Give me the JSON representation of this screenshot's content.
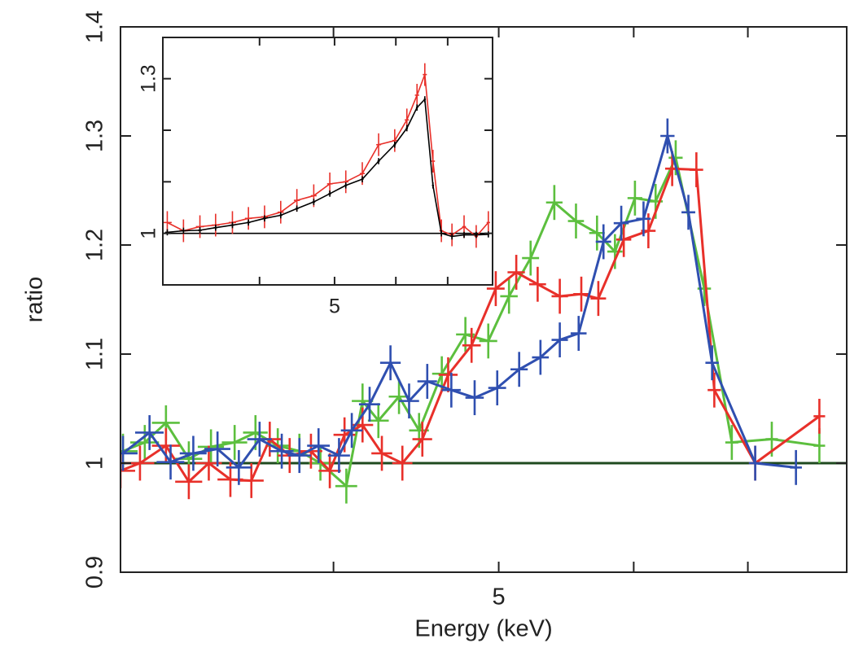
{
  "chart_data": [
    {
      "type": "line",
      "xlabel": "Energy (keV)",
      "ylabel": "ratio",
      "xlog": true,
      "xlim": [
        3,
        8
      ],
      "xticks": [
        5
      ],
      "xminorticks": [
        4,
        6,
        7
      ],
      "ylim": [
        0.9,
        1.4
      ],
      "yticks": [
        0.9,
        1,
        1.1,
        1.2,
        1.3,
        1.4
      ],
      "hline": 1,
      "hline_color": "#1f4a1f",
      "series": [
        {
          "color": "#5cbf3e",
          "xerr": 0.06,
          "yerr": 0.016,
          "x": [
            3.01,
            3.1,
            3.19,
            3.29,
            3.39,
            3.5,
            3.6,
            3.71,
            3.82,
            3.93,
            4.07,
            4.16,
            4.25,
            4.37,
            4.49,
            4.63,
            4.78,
            4.93,
            5.07,
            5.22,
            5.39,
            5.55,
            5.71,
            5.85,
            6.01,
            6.18,
            6.35,
            6.6,
            6.85,
            7.23,
            7.71
          ],
          "values": [
            1.011,
            1.019,
            1.037,
            1.004,
            1.015,
            1.019,
            1.028,
            1.016,
            1.011,
            1.0,
            0.979,
            1.057,
            1.039,
            1.061,
            1.03,
            1.082,
            1.118,
            1.112,
            1.153,
            1.188,
            1.239,
            1.222,
            1.211,
            1.194,
            1.243,
            1.24,
            1.28,
            1.16,
            1.019,
            1.022,
            1.016
          ]
        },
        {
          "color": "#e8302a",
          "xerr": 0.06,
          "yerr": 0.016,
          "x": [
            3.0,
            3.08,
            3.19,
            3.29,
            3.38,
            3.48,
            3.58,
            3.67,
            3.77,
            3.88,
            3.98,
            4.06,
            4.16,
            4.27,
            4.39,
            4.51,
            4.67,
            4.82,
            4.98,
            5.12,
            5.27,
            5.43,
            5.59,
            5.72,
            5.92,
            6.12,
            6.32,
            6.53,
            6.69,
            7.07,
            7.71
          ],
          "values": [
            0.993,
            1.0,
            1.016,
            0.983,
            1.0,
            0.985,
            0.984,
            1.022,
            1.007,
            1.011,
            0.993,
            1.026,
            1.035,
            1.009,
            1.0,
            1.022,
            1.081,
            1.108,
            1.16,
            1.175,
            1.164,
            1.153,
            1.155,
            1.151,
            1.205,
            1.213,
            1.27,
            1.269,
            1.067,
            1.0,
            1.043
          ]
        },
        {
          "color": "#2f4fb0",
          "xerr": 0.06,
          "yerr": 0.016,
          "x": [
            3.01,
            3.12,
            3.21,
            3.31,
            3.42,
            3.52,
            3.62,
            3.73,
            3.82,
            3.92,
            4.03,
            4.1,
            4.2,
            4.32,
            4.43,
            4.54,
            4.69,
            4.84,
            4.99,
            5.14,
            5.29,
            5.43,
            5.57,
            5.76,
            5.9,
            6.08,
            6.28,
            6.46,
            6.67,
            7.07,
            7.47
          ],
          "values": [
            1.009,
            1.028,
            1.001,
            1.009,
            1.013,
            0.996,
            1.022,
            1.011,
            1.007,
            1.016,
            1.007,
            1.03,
            1.054,
            1.092,
            1.057,
            1.075,
            1.067,
            1.06,
            1.069,
            1.086,
            1.097,
            1.113,
            1.119,
            1.203,
            1.22,
            1.224,
            1.3,
            1.23,
            1.092,
            1.0,
            0.996
          ]
        }
      ]
    },
    {
      "type": "line",
      "xlog": true,
      "xlim": [
        3,
        8
      ],
      "xticks": [
        5
      ],
      "xminorticks": [
        4,
        6,
        7
      ],
      "ylim": [
        0.9,
        1.38
      ],
      "yticks": [
        1,
        1.3
      ],
      "yminorticks": [
        1.1,
        1.2
      ],
      "hline": 1,
      "hline_color": "#000000",
      "series": [
        {
          "color": "#e8302a",
          "xerr": 0.04,
          "yerr": 0.022,
          "x": [
            3.04,
            3.19,
            3.35,
            3.51,
            3.69,
            3.87,
            4.06,
            4.26,
            4.47,
            4.7,
            4.93,
            5.17,
            5.43,
            5.7,
            5.98,
            6.2,
            6.39,
            6.54,
            6.7,
            6.87,
            7.09,
            7.35,
            7.62,
            7.9
          ],
          "values": [
            1.021,
            1.005,
            1.013,
            1.016,
            1.021,
            1.029,
            1.032,
            1.041,
            1.064,
            1.073,
            1.096,
            1.1,
            1.116,
            1.172,
            1.18,
            1.22,
            1.268,
            1.308,
            1.14,
            1.005,
            0.997,
            1.013,
            0.994,
            1.021
          ]
        },
        {
          "color": "#000000",
          "xerr": 0.02,
          "yerr": 0.006,
          "x": [
            3.04,
            3.19,
            3.35,
            3.51,
            3.69,
            3.87,
            4.06,
            4.26,
            4.47,
            4.7,
            4.93,
            5.17,
            5.43,
            5.7,
            5.98,
            6.2,
            6.39,
            6.54,
            6.7,
            6.87,
            7.09,
            7.35,
            7.62,
            7.9
          ],
          "values": [
            1.002,
            1.005,
            1.006,
            1.011,
            1.016,
            1.021,
            1.029,
            1.035,
            1.048,
            1.061,
            1.077,
            1.093,
            1.105,
            1.14,
            1.172,
            1.204,
            1.244,
            1.26,
            1.093,
            1.0,
            0.994,
            0.997,
            0.997,
            0.998
          ]
        }
      ]
    }
  ]
}
